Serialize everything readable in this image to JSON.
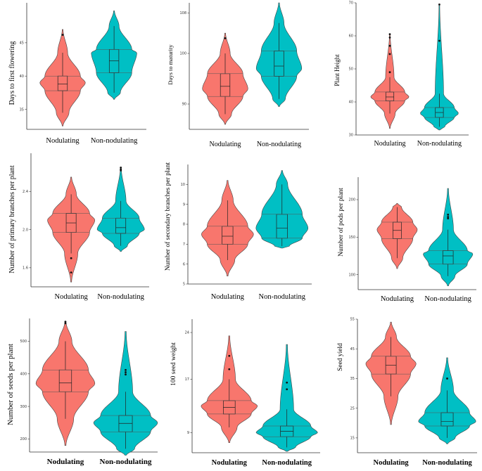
{
  "colors": {
    "nodulating": "#F8766D",
    "non_nodulating": "#00BFC4"
  },
  "chart_data": [
    {
      "type": "violin",
      "ylabel": "Days to first flowering",
      "categories": [
        "Nodulating",
        "Non-nodulating"
      ],
      "ylim": [
        32,
        51
      ],
      "yticks": [
        35,
        40,
        45
      ],
      "ytick_labels": [
        "35",
        "40",
        "45"
      ],
      "series": [
        {
          "name": "Nodulating",
          "min": 32.5,
          "max": 47,
          "median": 38.8,
          "q1": 37.8,
          "q3": 40.0,
          "whisker_low": 34.5,
          "whisker_high": 43.5,
          "mode": 39.0,
          "outliers": [
            46.2
          ]
        },
        {
          "name": "Non-nodulating",
          "min": 36.5,
          "max": 49.8,
          "median": 42.3,
          "q1": 40.5,
          "q3": 44.0,
          "whisker_low": 37.5,
          "whisker_high": 47.5,
          "mode": 43.5,
          "outliers": []
        }
      ]
    },
    {
      "type": "violin",
      "ylabel": "Days to maturity",
      "categories": [
        "Nodulating",
        "Non-nodulating"
      ],
      "ylim": [
        85,
        110
      ],
      "yticks": [
        90,
        100,
        108
      ],
      "ytick_labels": [
        "90",
        "100",
        "108"
      ],
      "series": [
        {
          "name": "Nodulating",
          "min": 86,
          "max": 104,
          "median": 93.5,
          "q1": 91.5,
          "q3": 96,
          "whisker_low": 88,
          "whisker_high": 100,
          "mode": 93,
          "outliers": [
            103
          ]
        },
        {
          "name": "Non-nodulating",
          "min": 89.5,
          "max": 110,
          "median": 97.5,
          "q1": 95.5,
          "q3": 100.5,
          "whisker_low": 91,
          "whisker_high": 106,
          "mode": 97,
          "outliers": []
        }
      ]
    },
    {
      "type": "violin",
      "ylabel": "Plant Height",
      "categories": [
        "Nodulating",
        "Non-nodulating"
      ],
      "ylim": [
        30,
        70
      ],
      "yticks": [
        30,
        40,
        50,
        60,
        70
      ],
      "ytick_labels": [
        "30",
        "40",
        "50",
        "60",
        "70"
      ],
      "series": [
        {
          "name": "Nodulating",
          "min": 32,
          "max": 60.5,
          "median": 41.5,
          "q1": 40.3,
          "q3": 43,
          "whisker_low": 36.5,
          "whisker_high": 47.5,
          "mode": 41.5,
          "outliers": [
            49,
            54.5,
            57,
            59.5,
            60.5
          ]
        },
        {
          "name": "Non-nodulating",
          "min": 31.5,
          "max": 69.5,
          "median": 36.8,
          "q1": 35.3,
          "q3": 38.3,
          "whisker_low": 32.5,
          "whisker_high": 42.5,
          "mode": 36.5,
          "outliers": [
            58.5,
            69.5
          ]
        }
      ]
    },
    {
      "type": "violin",
      "ylabel": "Number of primary branches per plant",
      "categories": [
        "Nodulating",
        "Non-nodulating"
      ],
      "ylim": [
        1.4,
        2.8
      ],
      "yticks": [
        1.6,
        2.0,
        2.4
      ],
      "ytick_labels": [
        "1.6",
        "2.0",
        "2.4"
      ],
      "series": [
        {
          "name": "Nodulating",
          "min": 1.45,
          "max": 2.55,
          "median": 2.07,
          "q1": 1.97,
          "q3": 2.17,
          "whisker_low": 1.75,
          "whisker_high": 2.37,
          "mode": 2.1,
          "outliers": [
            1.7,
            1.55
          ]
        },
        {
          "name": "Non-nodulating",
          "min": 1.77,
          "max": 2.65,
          "median": 2.02,
          "q1": 1.96,
          "q3": 2.12,
          "whisker_low": 1.83,
          "whisker_high": 2.3,
          "mode": 2.0,
          "outliers": [
            2.62,
            2.65,
            2.63
          ]
        }
      ]
    },
    {
      "type": "violin",
      "ylabel": "Number of secondary branches per plant",
      "categories": [
        "Nodulating",
        "Non-nodulating"
      ],
      "ylim": [
        5,
        11
      ],
      "yticks": [
        5,
        6,
        7,
        8,
        9,
        10
      ],
      "ytick_labels": [
        "5",
        "6",
        "7",
        "8",
        "9",
        "10"
      ],
      "series": [
        {
          "name": "Nodulating",
          "min": 5.4,
          "max": 10.2,
          "median": 7.4,
          "q1": 7.0,
          "q3": 7.9,
          "whisker_low": 6.2,
          "whisker_high": 9.2,
          "mode": 7.5,
          "outliers": []
        },
        {
          "name": "Non-nodulating",
          "min": 6.8,
          "max": 10.7,
          "median": 7.8,
          "q1": 7.3,
          "q3": 8.5,
          "whisker_low": 6.9,
          "whisker_high": 10.0,
          "mode": 7.8,
          "outliers": []
        }
      ]
    },
    {
      "type": "violin",
      "ylabel": "Number of pods per plant",
      "categories": [
        "Nodulating",
        "Non-nodulating"
      ],
      "ylim": [
        80,
        230
      ],
      "yticks": [
        100,
        150,
        200
      ],
      "ytick_labels": [
        "100",
        "150",
        "200"
      ],
      "series": [
        {
          "name": "Nodulating",
          "min": 108,
          "max": 195,
          "median": 159,
          "q1": 148,
          "q3": 170,
          "whisker_low": 122,
          "whisker_high": 190,
          "mode": 160,
          "outliers": []
        },
        {
          "name": "Non-nodulating",
          "min": 85,
          "max": 215,
          "median": 125,
          "q1": 114,
          "q3": 132,
          "whisker_low": 98,
          "whisker_high": 160,
          "mode": 128,
          "outliers": [
            175,
            177,
            180
          ]
        }
      ]
    },
    {
      "type": "violin",
      "ylabel": "Number of seeds per plant",
      "categories": [
        "Nodulating",
        "Non-nodulating"
      ],
      "ylim": [
        160,
        570
      ],
      "yticks": [
        200,
        300,
        400,
        500
      ],
      "ytick_labels": [
        "200",
        "300",
        "400",
        "500"
      ],
      "series": [
        {
          "name": "Nodulating",
          "min": 180,
          "max": 560,
          "median": 372,
          "q1": 345,
          "q3": 412,
          "whisker_low": 262,
          "whisker_high": 500,
          "mode": 370,
          "outliers": [
            555,
            560
          ]
        },
        {
          "name": "Non-nodulating",
          "min": 150,
          "max": 530,
          "median": 248,
          "q1": 222,
          "q3": 272,
          "whisker_low": 170,
          "whisker_high": 345,
          "mode": 250,
          "outliers": [
            398,
            405,
            412
          ]
        }
      ]
    },
    {
      "type": "violin",
      "ylabel": "100 seed weight",
      "categories": [
        "Nodulating",
        "Non-nodulating"
      ],
      "ylim": [
        6,
        26
      ],
      "yticks": [
        9,
        17,
        24
      ],
      "ytick_labels": [
        "9",
        "17",
        "24"
      ],
      "series": [
        {
          "name": "Nodulating",
          "min": 7.5,
          "max": 23.5,
          "median": 12.8,
          "q1": 11.8,
          "q3": 13.8,
          "whisker_low": 9.8,
          "whisker_high": 17,
          "mode": 13.0,
          "outliers": [
            18.5,
            20.5
          ]
        },
        {
          "name": "Non-nodulating",
          "min": 6.2,
          "max": 22.2,
          "median": 9.2,
          "q1": 8.4,
          "q3": 10.0,
          "whisker_low": 6.8,
          "whisker_high": 12.5,
          "mode": 9.0,
          "outliers": [
            15.5,
            16.5
          ]
        }
      ]
    },
    {
      "type": "violin",
      "ylabel": "Seed yield",
      "categories": [
        "Nodulating",
        "Non-nodulating"
      ],
      "ylim": [
        10,
        55
      ],
      "yticks": [
        15,
        25,
        35,
        45,
        55
      ],
      "ytick_labels": [
        "15",
        "25",
        "35",
        "45",
        "55"
      ],
      "series": [
        {
          "name": "Nodulating",
          "min": 19.5,
          "max": 54,
          "median": 39.5,
          "q1": 36.5,
          "q3": 42.5,
          "whisker_low": 29,
          "whisker_high": 49,
          "mode": 40,
          "outliers": []
        },
        {
          "name": "Non-nodulating",
          "min": 13,
          "max": 42,
          "median": 20.5,
          "q1": 19,
          "q3": 23.5,
          "whisker_low": 15,
          "whisker_high": 31,
          "mode": 20.5,
          "outliers": [
            35
          ]
        }
      ]
    }
  ]
}
